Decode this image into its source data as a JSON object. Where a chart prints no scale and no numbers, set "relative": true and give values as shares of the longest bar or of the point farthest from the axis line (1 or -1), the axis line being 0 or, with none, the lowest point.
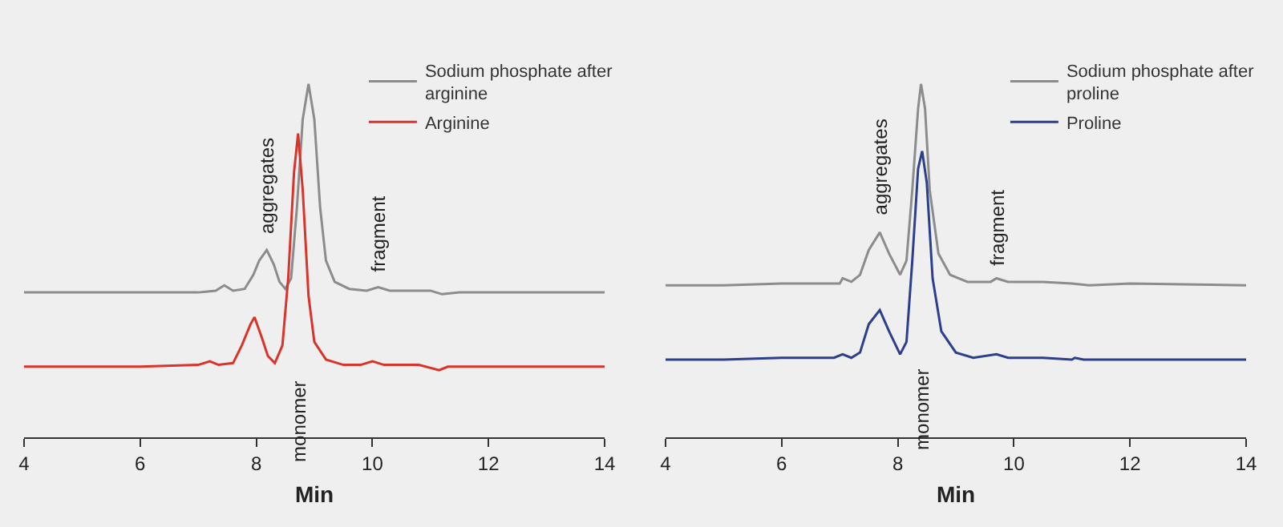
{
  "chart_data": [
    {
      "type": "line",
      "relative": true,
      "xlabel": "Min",
      "xlim": [
        4,
        14
      ],
      "xticks": [
        4,
        6,
        8,
        10,
        12,
        14
      ],
      "tick_labels": "x",
      "grid": false,
      "legend": "top right",
      "marker": "none",
      "line_style": "solid",
      "series": [
        {
          "name": "Sodium phosphate after arginine",
          "color": "#8c8c8c",
          "x": [
            4,
            5,
            6,
            7,
            7.3,
            7.45,
            7.6,
            7.8,
            7.95,
            8.05,
            8.18,
            8.3,
            8.4,
            8.5,
            8.6,
            8.7,
            8.8,
            8.9,
            9.0,
            9.1,
            9.2,
            9.35,
            9.6,
            9.9,
            10.1,
            10.3,
            11,
            11.2,
            11.5,
            12,
            13,
            14
          ],
          "values": [
            0.41,
            0.41,
            0.41,
            0.41,
            0.415,
            0.43,
            0.415,
            0.42,
            0.46,
            0.5,
            0.53,
            0.49,
            0.44,
            0.42,
            0.45,
            0.65,
            0.9,
            1.0,
            0.9,
            0.65,
            0.5,
            0.44,
            0.42,
            0.415,
            0.425,
            0.415,
            0.415,
            0.405,
            0.41,
            0.41,
            0.41,
            0.41
          ]
        },
        {
          "name": "Arginine",
          "color": "#d9342b",
          "x": [
            4,
            6,
            7,
            7.2,
            7.35,
            7.6,
            7.75,
            7.9,
            7.97,
            8.1,
            8.2,
            8.32,
            8.45,
            8.55,
            8.65,
            8.72,
            8.8,
            8.9,
            9.0,
            9.2,
            9.5,
            9.8,
            10,
            10.2,
            10.8,
            11.15,
            11.3,
            12,
            14
          ],
          "values": [
            0.2,
            0.2,
            0.205,
            0.215,
            0.205,
            0.21,
            0.26,
            0.32,
            0.34,
            0.28,
            0.23,
            0.21,
            0.26,
            0.45,
            0.75,
            0.86,
            0.7,
            0.4,
            0.27,
            0.22,
            0.205,
            0.205,
            0.215,
            0.205,
            0.205,
            0.19,
            0.2,
            0.2,
            0.2
          ]
        }
      ],
      "annotations": [
        {
          "text": "aggregates",
          "x": 8.18,
          "y": 0.55
        },
        "monomer",
        {
          "text": "fragment",
          "x": 10.1,
          "y": 0.44
        }
      ]
    },
    {
      "type": "line",
      "relative": true,
      "xlabel": "Min",
      "xlim": [
        4,
        14
      ],
      "xticks": [
        4,
        6,
        8,
        10,
        12,
        14
      ],
      "tick_labels": "x",
      "grid": false,
      "legend": "top right",
      "marker": "none",
      "line_style": "solid",
      "series": [
        {
          "name": "Sodium phosphate after proline",
          "color": "#8c8c8c",
          "x": [
            4,
            5,
            6,
            7,
            7.05,
            7.2,
            7.35,
            7.5,
            7.69,
            7.85,
            8.04,
            8.15,
            8.25,
            8.35,
            8.4,
            8.47,
            8.55,
            8.7,
            8.9,
            9.2,
            9.6,
            9.7,
            9.9,
            10.5,
            11,
            11.3,
            12,
            14
          ],
          "values": [
            0.43,
            0.43,
            0.435,
            0.435,
            0.45,
            0.44,
            0.46,
            0.53,
            0.58,
            0.52,
            0.46,
            0.5,
            0.7,
            0.93,
            1.0,
            0.93,
            0.7,
            0.52,
            0.46,
            0.44,
            0.44,
            0.45,
            0.44,
            0.44,
            0.435,
            0.43,
            0.435,
            0.43
          ]
        },
        {
          "name": "Proline",
          "color": "#2b3f8c",
          "x": [
            4,
            5,
            6,
            6.9,
            7.05,
            7.2,
            7.35,
            7.5,
            7.69,
            7.85,
            8.04,
            8.15,
            8.25,
            8.35,
            8.42,
            8.5,
            8.6,
            8.75,
            9,
            9.3,
            9.7,
            9.9,
            10.5,
            11,
            11.05,
            11.2,
            12,
            14
          ],
          "values": [
            0.22,
            0.22,
            0.225,
            0.225,
            0.235,
            0.225,
            0.24,
            0.32,
            0.36,
            0.3,
            0.235,
            0.27,
            0.5,
            0.76,
            0.81,
            0.72,
            0.45,
            0.3,
            0.24,
            0.225,
            0.235,
            0.225,
            0.225,
            0.22,
            0.225,
            0.22,
            0.22,
            0.22
          ]
        }
      ],
      "annotations": [
        {
          "text": "aggregates",
          "x": 7.69,
          "y": 0.6
        },
        "monomer",
        {
          "text": "fragment",
          "x": 9.7,
          "y": 0.46
        }
      ]
    }
  ]
}
